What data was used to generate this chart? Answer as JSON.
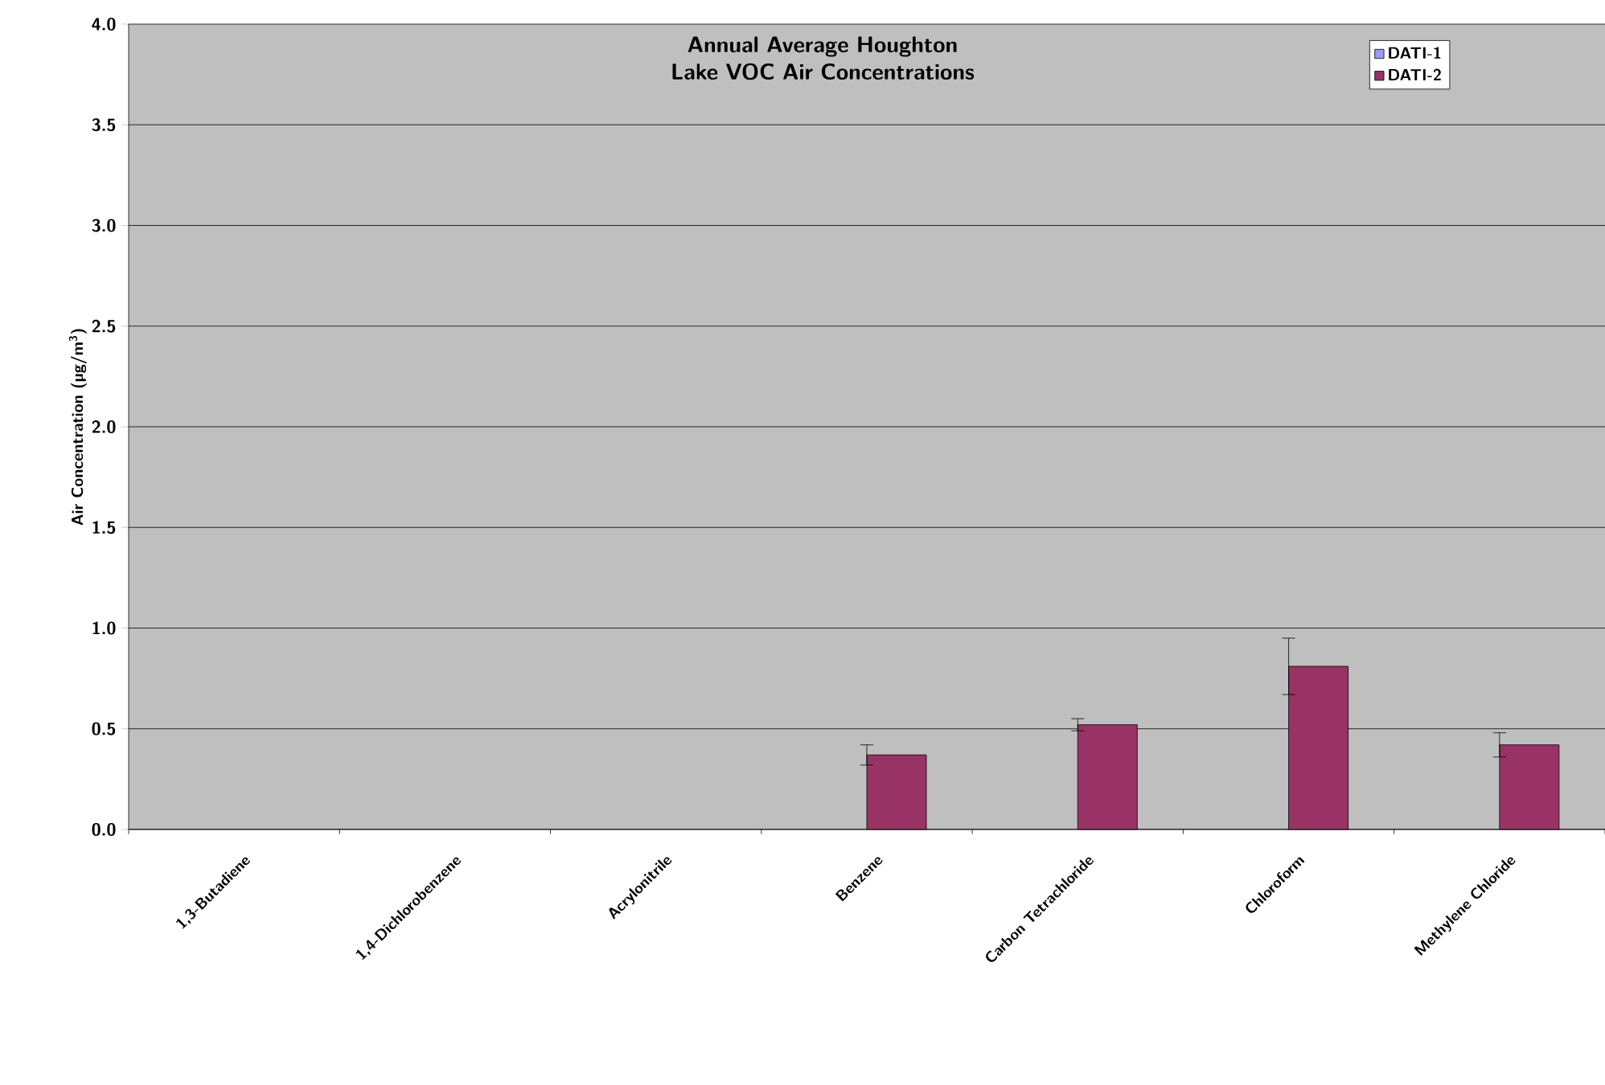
{
  "chart_data": {
    "type": "bar",
    "title": "Annual Average Houghton Lake VOC Air Concentrations",
    "ylabel": "Air Concentration (µg/m$^{3}$)",
    "categories": [
      "1,3-Butadiene",
      "1,4-Dichlorobenzene",
      "Acrylonitrile",
      "Benzene",
      "Carbon Tetrachloride",
      "Chloroform",
      "Methylene Chloride"
    ],
    "series": [
      {
        "name": "DATI-1",
        "color": "#9999ff",
        "values": [
          null,
          null,
          null,
          null,
          null,
          null,
          null
        ]
      },
      {
        "name": "DATI-2",
        "color": "#993366",
        "values": [
          null,
          null,
          null,
          0.37,
          0.52,
          0.81,
          0.42
        ],
        "errors": [
          null,
          null,
          null,
          0.05,
          0.03,
          0.14,
          0.06
        ]
      }
    ],
    "ylim": [
      0,
      4
    ],
    "yticks": [
      {
        "value": 0,
        "label": "0.0"
      },
      {
        "value": 0.5,
        "label": "0.5"
      },
      {
        "value": 1,
        "label": "1.0"
      },
      {
        "value": 1.5,
        "label": "1.5"
      },
      {
        "value": 2,
        "label": "2.0"
      },
      {
        "value": 2.5,
        "label": "2.5"
      },
      {
        "value": 3,
        "label": "3.0"
      },
      {
        "value": 3.5,
        "label": "3.5"
      },
      {
        "value": 4,
        "label": "4.0"
      }
    ],
    "grid": "y",
    "legend": "top right"
  }
}
